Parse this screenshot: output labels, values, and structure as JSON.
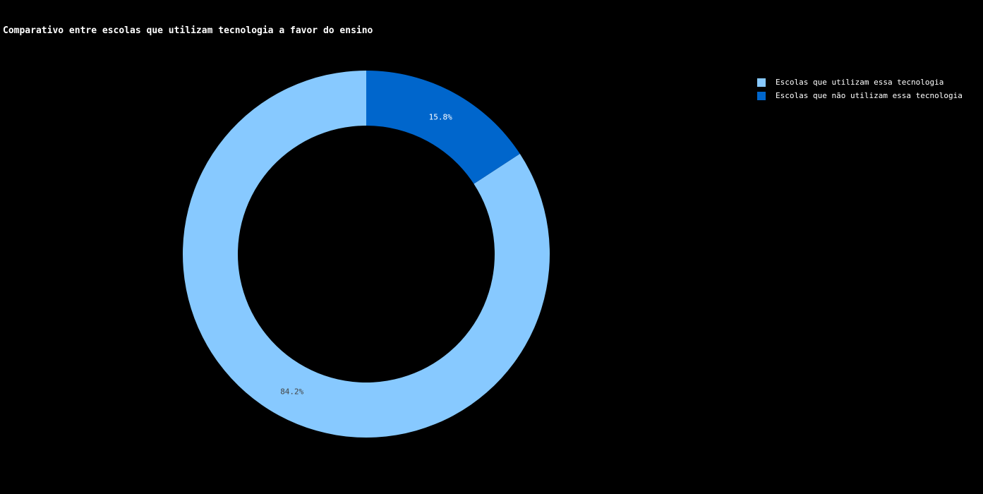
{
  "chart_data": {
    "type": "pie",
    "hole": true,
    "title": "Comparativo entre escolas que utilizam tecnologia a favor do ensino",
    "labels": [
      "Escolas que utilizam essa tecnologia",
      "Escolas que não utilizam essa tecnologia"
    ],
    "values": [
      84.2,
      15.8
    ],
    "value_labels": [
      "84.2%",
      "15.8%"
    ],
    "colors": [
      "#87c9ff",
      "#0066cc"
    ],
    "label_colors": [
      "#444444",
      "#ffffff"
    ],
    "legend_position": "top-right"
  }
}
